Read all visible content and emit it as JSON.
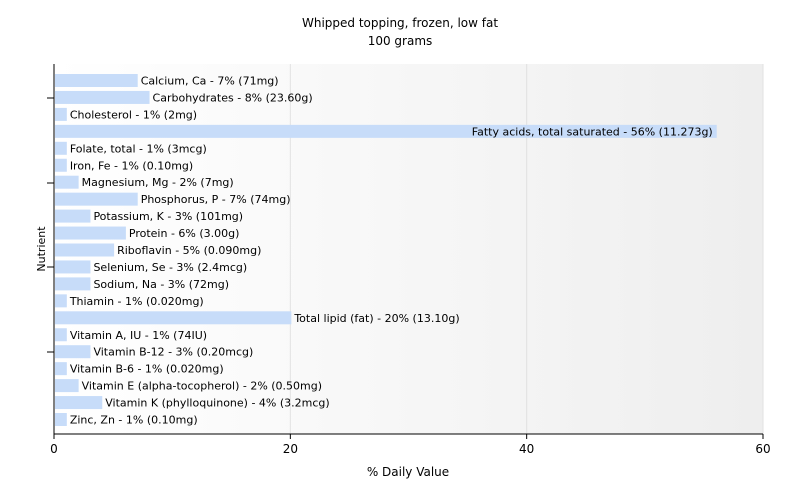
{
  "chart_data": {
    "type": "bar",
    "orientation": "horizontal",
    "title": "Whipped topping, frozen, low fat",
    "subtitle": "100 grams",
    "xlabel": "% Daily Value",
    "ylabel": "Nutrient",
    "xlim": [
      0,
      60
    ],
    "xticks": [
      0,
      20,
      40,
      60
    ],
    "grid": true,
    "bar_color": "#c7dcf9",
    "categories": [
      "Calcium, Ca",
      "Carbohydrates",
      "Cholesterol",
      "Fatty acids, total saturated",
      "Folate, total",
      "Iron, Fe",
      "Magnesium, Mg",
      "Phosphorus, P",
      "Potassium, K",
      "Protein",
      "Riboflavin",
      "Selenium, Se",
      "Sodium, Na",
      "Thiamin",
      "Total lipid (fat)",
      "Vitamin A, IU",
      "Vitamin B-12",
      "Vitamin B-6",
      "Vitamin E (alpha-tocopherol)",
      "Vitamin K (phylloquinone)",
      "Zinc, Zn"
    ],
    "values": [
      7,
      8,
      1,
      56,
      1,
      1,
      2,
      7,
      3,
      6,
      5,
      3,
      3,
      1,
      20,
      1,
      3,
      1,
      2,
      4,
      1
    ],
    "labels": [
      "Calcium, Ca - 7% (71mg)",
      "Carbohydrates - 8% (23.60g)",
      "Cholesterol - 1% (2mg)",
      "Fatty acids, total saturated - 56% (11.273g)",
      "Folate, total - 1% (3mcg)",
      "Iron, Fe - 1% (0.10mg)",
      "Magnesium, Mg - 2% (7mg)",
      "Phosphorus, P - 7% (74mg)",
      "Potassium, K - 3% (101mg)",
      "Protein - 6% (3.00g)",
      "Riboflavin - 5% (0.090mg)",
      "Selenium, Se - 3% (2.4mcg)",
      "Sodium, Na - 3% (72mg)",
      "Thiamin - 1% (0.020mg)",
      "Total lipid (fat) - 20% (13.10g)",
      "Vitamin A, IU - 1% (74IU)",
      "Vitamin B-12 - 3% (0.20mcg)",
      "Vitamin B-6 - 1% (0.020mg)",
      "Vitamin E (alpha-tocopherol) - 2% (0.50mg)",
      "Vitamin K (phylloquinone) - 4% (3.2mcg)",
      "Zinc, Zn - 1% (0.10mg)"
    ]
  }
}
